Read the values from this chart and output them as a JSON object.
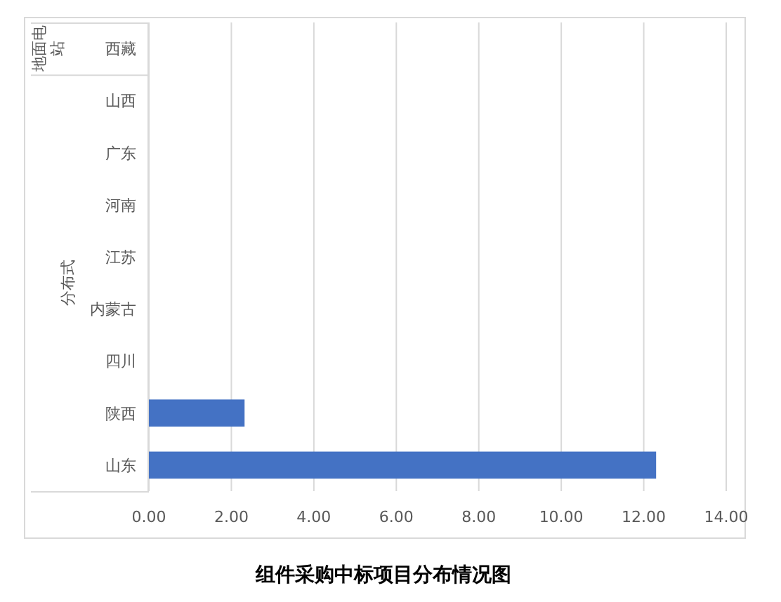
{
  "chart_data": {
    "type": "bar",
    "orientation": "horizontal",
    "title": "组件采购中标项目分布情况图",
    "categories": [
      "西藏",
      "山西",
      "广东",
      "河南",
      "江苏",
      "内蒙古",
      "四川",
      "陕西",
      "山东"
    ],
    "values": [
      0,
      0,
      0,
      0,
      0,
      0,
      0,
      2.32,
      12.3
    ],
    "color": "#4472c4",
    "xlim": [
      0,
      14
    ],
    "xticks": [
      {
        "value": 0,
        "label": "0.00"
      },
      {
        "value": 2,
        "label": "2.00"
      },
      {
        "value": 4,
        "label": "4.00"
      },
      {
        "value": 6,
        "label": "6.00"
      },
      {
        "value": 8,
        "label": "8.00"
      },
      {
        "value": 10,
        "label": "10.00"
      },
      {
        "value": 12,
        "label": "12.00"
      },
      {
        "value": 14,
        "label": "14.00"
      }
    ],
    "grid": "x",
    "annotations": [
      "地面电站",
      "分布式"
    ]
  }
}
